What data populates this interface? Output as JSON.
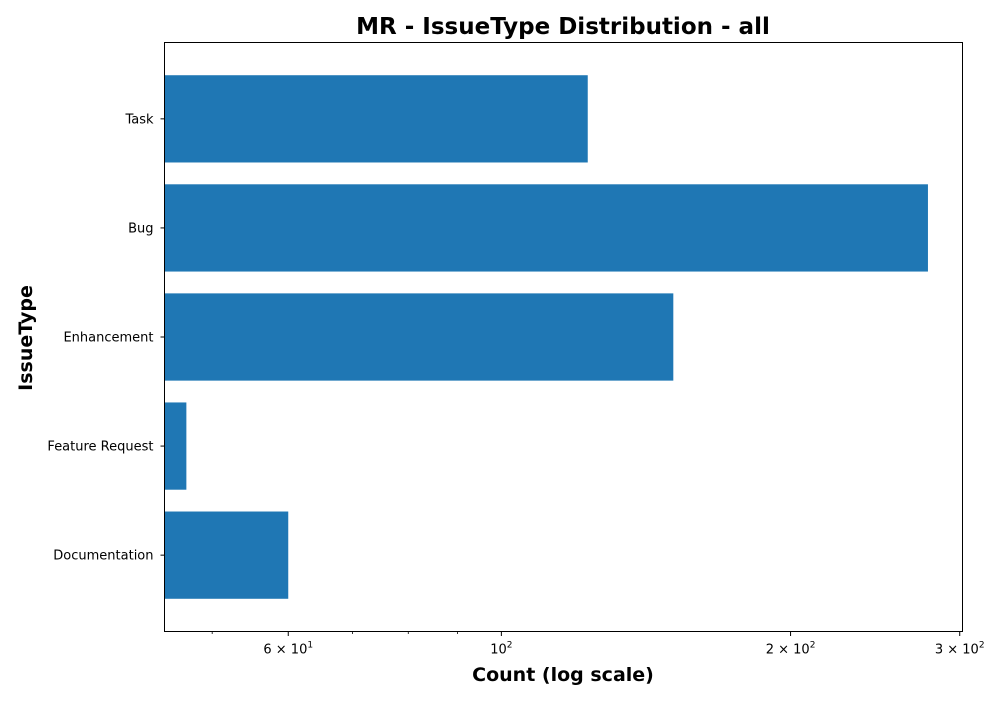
{
  "chart_data": {
    "type": "bar",
    "orientation": "horizontal",
    "title": "MR - IssueType Distribution - all",
    "xlabel": "Count (log scale)",
    "ylabel": "IssueType",
    "x_scale": "log",
    "xlim": [
      44.6,
      302
    ],
    "categories": [
      "Task",
      "Bug",
      "Enhancement",
      "Feature Request",
      "Documentation"
    ],
    "values": [
      123,
      278,
      151,
      47,
      60
    ],
    "x_ticks": [
      {
        "value": 60,
        "base": "6 × 10",
        "exp": "1"
      },
      {
        "value": 100,
        "base": "10",
        "exp": "2"
      },
      {
        "value": 200,
        "base": "2 × 10",
        "exp": "2"
      },
      {
        "value": 300,
        "base": "3 × 10",
        "exp": "2"
      }
    ],
    "x_minor_ticks": [
      50,
      70,
      80,
      90
    ],
    "bar_color": "#1f77b4",
    "grid": false,
    "legend": "none"
  }
}
